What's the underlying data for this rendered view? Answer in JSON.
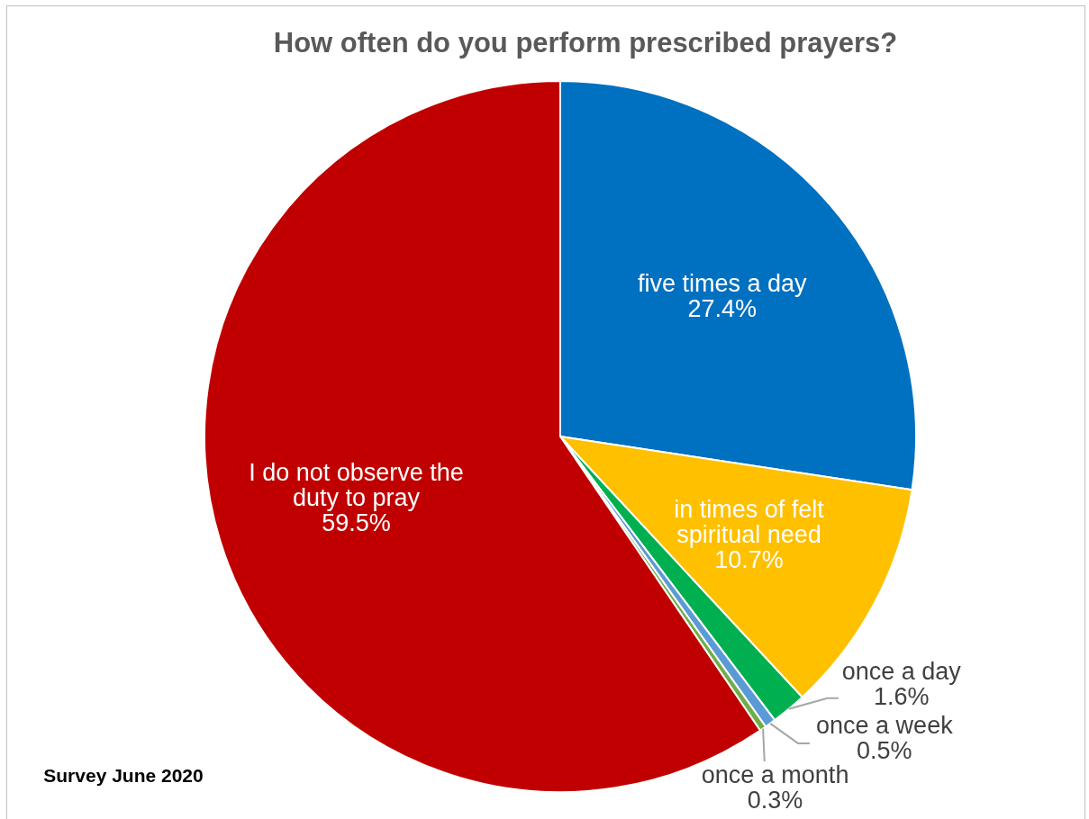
{
  "chart_data": {
    "type": "pie",
    "title": "How often do you perform prescribed prayers?",
    "categories": [
      "five times a day",
      "in times of felt spiritual need",
      "once a day",
      "once a week",
      "once a month",
      "I do not observe the duty to pray"
    ],
    "values": [
      27.4,
      10.7,
      1.6,
      0.5,
      0.3,
      59.5
    ],
    "colors": [
      "#0070c0",
      "#ffc000",
      "#00b050",
      "#5b9bd5",
      "#70ad47",
      "#c00000"
    ],
    "value_labels": [
      "27.4%",
      "10.7%",
      "1.6%",
      "0.5%",
      "0.3%",
      "59.5%"
    ],
    "annotations": [
      "Survey June 2020"
    ]
  }
}
